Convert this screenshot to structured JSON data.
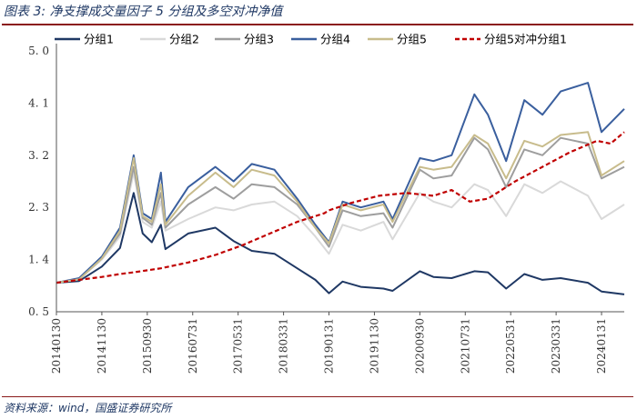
{
  "header": {
    "title": "图表 3:  净支撑成交量因子 5 分组及多空对冲净值"
  },
  "footer": {
    "source": "资料来源：wind，国盛证券研究所"
  },
  "chart_data": {
    "type": "line",
    "title": "净支撑成交量因子 5 分组及多空对冲净值",
    "xlabel": "",
    "ylabel": "",
    "ylim": [
      0.5,
      5.0
    ],
    "yticks": [
      "5. 0",
      "4. 1",
      "3. 2",
      "2. 3",
      "1. 4",
      "0. 5"
    ],
    "ytick_values": [
      5.0,
      4.1,
      3.2,
      2.3,
      1.4,
      0.5
    ],
    "x_range": [
      "2014-01",
      "2024-06"
    ],
    "xticks": [
      "20140130",
      "20141130",
      "20150930",
      "20160731",
      "20170531",
      "20180331",
      "20190131",
      "20191130",
      "20200930",
      "20210731",
      "20220531",
      "20230331",
      "20240131"
    ],
    "legend_position": "top",
    "series": [
      {
        "name": "分组1",
        "color": "#1f3864",
        "dash": "solid",
        "points": [
          [
            "2014-01",
            1.0
          ],
          [
            "2014-06",
            1.03
          ],
          [
            "2014-11",
            1.28
          ],
          [
            "2015-03",
            1.6
          ],
          [
            "2015-06",
            2.55
          ],
          [
            "2015-08",
            1.85
          ],
          [
            "2015-10",
            1.7
          ],
          [
            "2015-12",
            2.0
          ],
          [
            "2016-01",
            1.58
          ],
          [
            "2016-06",
            1.85
          ],
          [
            "2016-12",
            1.95
          ],
          [
            "2017-04",
            1.72
          ],
          [
            "2017-08",
            1.55
          ],
          [
            "2018-01",
            1.5
          ],
          [
            "2018-06",
            1.25
          ],
          [
            "2018-10",
            1.05
          ],
          [
            "2019-01",
            0.82
          ],
          [
            "2019-04",
            1.02
          ],
          [
            "2019-08",
            0.93
          ],
          [
            "2020-01",
            0.9
          ],
          [
            "2020-03",
            0.86
          ],
          [
            "2020-09",
            1.2
          ],
          [
            "2020-12",
            1.1
          ],
          [
            "2021-04",
            1.08
          ],
          [
            "2021-09",
            1.2
          ],
          [
            "2021-12",
            1.18
          ],
          [
            "2022-04",
            0.9
          ],
          [
            "2022-08",
            1.15
          ],
          [
            "2022-12",
            1.05
          ],
          [
            "2023-04",
            1.08
          ],
          [
            "2023-10",
            1.0
          ],
          [
            "2024-01",
            0.85
          ],
          [
            "2024-06",
            0.8
          ]
        ]
      },
      {
        "name": "分组2",
        "color": "#d9d9d9",
        "dash": "solid",
        "points": [
          [
            "2014-01",
            1.0
          ],
          [
            "2014-06",
            1.06
          ],
          [
            "2014-11",
            1.4
          ],
          [
            "2015-03",
            1.8
          ],
          [
            "2015-06",
            2.9
          ],
          [
            "2015-08",
            2.05
          ],
          [
            "2015-10",
            1.95
          ],
          [
            "2015-12",
            2.4
          ],
          [
            "2016-01",
            1.9
          ],
          [
            "2016-06",
            2.1
          ],
          [
            "2016-12",
            2.3
          ],
          [
            "2017-04",
            2.25
          ],
          [
            "2017-08",
            2.35
          ],
          [
            "2018-01",
            2.4
          ],
          [
            "2018-06",
            2.15
          ],
          [
            "2018-10",
            1.8
          ],
          [
            "2019-01",
            1.5
          ],
          [
            "2019-04",
            2.0
          ],
          [
            "2019-08",
            1.9
          ],
          [
            "2020-01",
            2.05
          ],
          [
            "2020-03",
            1.75
          ],
          [
            "2020-09",
            2.55
          ],
          [
            "2020-12",
            2.4
          ],
          [
            "2021-04",
            2.3
          ],
          [
            "2021-09",
            2.7
          ],
          [
            "2021-12",
            2.6
          ],
          [
            "2022-04",
            2.15
          ],
          [
            "2022-08",
            2.7
          ],
          [
            "2022-12",
            2.55
          ],
          [
            "2023-04",
            2.75
          ],
          [
            "2023-10",
            2.5
          ],
          [
            "2024-01",
            2.1
          ],
          [
            "2024-06",
            2.35
          ]
        ]
      },
      {
        "name": "分组3",
        "color": "#9e9e9e",
        "dash": "solid",
        "points": [
          [
            "2014-01",
            1.0
          ],
          [
            "2014-06",
            1.06
          ],
          [
            "2014-11",
            1.42
          ],
          [
            "2015-03",
            1.85
          ],
          [
            "2015-06",
            3.0
          ],
          [
            "2015-08",
            2.12
          ],
          [
            "2015-10",
            2.0
          ],
          [
            "2015-12",
            2.55
          ],
          [
            "2016-01",
            1.95
          ],
          [
            "2016-06",
            2.35
          ],
          [
            "2016-12",
            2.65
          ],
          [
            "2017-04",
            2.45
          ],
          [
            "2017-08",
            2.7
          ],
          [
            "2018-01",
            2.65
          ],
          [
            "2018-06",
            2.35
          ],
          [
            "2018-10",
            1.95
          ],
          [
            "2019-01",
            1.62
          ],
          [
            "2019-04",
            2.25
          ],
          [
            "2019-08",
            2.15
          ],
          [
            "2020-01",
            2.2
          ],
          [
            "2020-03",
            1.95
          ],
          [
            "2020-09",
            2.95
          ],
          [
            "2020-12",
            2.8
          ],
          [
            "2021-04",
            2.85
          ],
          [
            "2021-09",
            3.5
          ],
          [
            "2021-12",
            3.3
          ],
          [
            "2022-04",
            2.65
          ],
          [
            "2022-08",
            3.3
          ],
          [
            "2022-12",
            3.2
          ],
          [
            "2023-04",
            3.5
          ],
          [
            "2023-10",
            3.4
          ],
          [
            "2024-01",
            2.8
          ],
          [
            "2024-06",
            3.0
          ]
        ]
      },
      {
        "name": "分组4",
        "color": "#3a5f9e",
        "dash": "solid",
        "points": [
          [
            "2014-01",
            1.0
          ],
          [
            "2014-06",
            1.08
          ],
          [
            "2014-11",
            1.45
          ],
          [
            "2015-03",
            1.95
          ],
          [
            "2015-06",
            3.2
          ],
          [
            "2015-08",
            2.2
          ],
          [
            "2015-10",
            2.1
          ],
          [
            "2015-12",
            2.9
          ],
          [
            "2016-01",
            2.05
          ],
          [
            "2016-06",
            2.65
          ],
          [
            "2016-12",
            3.0
          ],
          [
            "2017-04",
            2.75
          ],
          [
            "2017-08",
            3.05
          ],
          [
            "2018-01",
            2.95
          ],
          [
            "2018-06",
            2.45
          ],
          [
            "2018-10",
            2.0
          ],
          [
            "2019-01",
            1.7
          ],
          [
            "2019-04",
            2.4
          ],
          [
            "2019-08",
            2.3
          ],
          [
            "2020-01",
            2.4
          ],
          [
            "2020-03",
            2.1
          ],
          [
            "2020-09",
            3.15
          ],
          [
            "2020-12",
            3.1
          ],
          [
            "2021-04",
            3.2
          ],
          [
            "2021-09",
            4.25
          ],
          [
            "2021-12",
            3.9
          ],
          [
            "2022-04",
            3.1
          ],
          [
            "2022-08",
            4.15
          ],
          [
            "2022-12",
            3.9
          ],
          [
            "2023-04",
            4.3
          ],
          [
            "2023-10",
            4.45
          ],
          [
            "2024-01",
            3.6
          ],
          [
            "2024-06",
            4.0
          ]
        ]
      },
      {
        "name": "分组5",
        "color": "#c8bc8c",
        "dash": "solid",
        "points": [
          [
            "2014-01",
            1.0
          ],
          [
            "2014-06",
            1.06
          ],
          [
            "2014-11",
            1.42
          ],
          [
            "2015-03",
            1.9
          ],
          [
            "2015-06",
            3.15
          ],
          [
            "2015-08",
            2.15
          ],
          [
            "2015-10",
            2.05
          ],
          [
            "2015-12",
            2.7
          ],
          [
            "2016-01",
            2.0
          ],
          [
            "2016-06",
            2.5
          ],
          [
            "2016-12",
            2.9
          ],
          [
            "2017-04",
            2.65
          ],
          [
            "2017-08",
            2.95
          ],
          [
            "2018-01",
            2.85
          ],
          [
            "2018-06",
            2.4
          ],
          [
            "2018-10",
            1.95
          ],
          [
            "2019-01",
            1.68
          ],
          [
            "2019-04",
            2.35
          ],
          [
            "2019-08",
            2.25
          ],
          [
            "2020-01",
            2.35
          ],
          [
            "2020-03",
            2.05
          ],
          [
            "2020-09",
            3.0
          ],
          [
            "2020-12",
            2.95
          ],
          [
            "2021-04",
            3.0
          ],
          [
            "2021-09",
            3.55
          ],
          [
            "2021-12",
            3.4
          ],
          [
            "2022-04",
            2.8
          ],
          [
            "2022-08",
            3.45
          ],
          [
            "2022-12",
            3.35
          ],
          [
            "2023-04",
            3.55
          ],
          [
            "2023-10",
            3.6
          ],
          [
            "2024-01",
            2.85
          ],
          [
            "2024-06",
            3.1
          ]
        ]
      },
      {
        "name": "分组5对冲分组1",
        "color": "#c00000",
        "dash": "dashed",
        "points": [
          [
            "2014-01",
            1.0
          ],
          [
            "2014-06",
            1.05
          ],
          [
            "2014-11",
            1.1
          ],
          [
            "2015-03",
            1.15
          ],
          [
            "2015-06",
            1.18
          ],
          [
            "2015-12",
            1.25
          ],
          [
            "2016-06",
            1.35
          ],
          [
            "2016-12",
            1.48
          ],
          [
            "2017-06",
            1.65
          ],
          [
            "2017-12",
            1.85
          ],
          [
            "2018-06",
            2.05
          ],
          [
            "2018-12",
            2.2
          ],
          [
            "2019-01",
            2.25
          ],
          [
            "2019-06",
            2.38
          ],
          [
            "2019-12",
            2.5
          ],
          [
            "2020-06",
            2.55
          ],
          [
            "2020-12",
            2.5
          ],
          [
            "2021-04",
            2.6
          ],
          [
            "2021-08",
            2.4
          ],
          [
            "2021-12",
            2.45
          ],
          [
            "2022-06",
            2.75
          ],
          [
            "2022-12",
            3.0
          ],
          [
            "2023-06",
            3.25
          ],
          [
            "2023-12",
            3.45
          ],
          [
            "2024-03",
            3.4
          ],
          [
            "2024-06",
            3.6
          ]
        ]
      }
    ]
  }
}
